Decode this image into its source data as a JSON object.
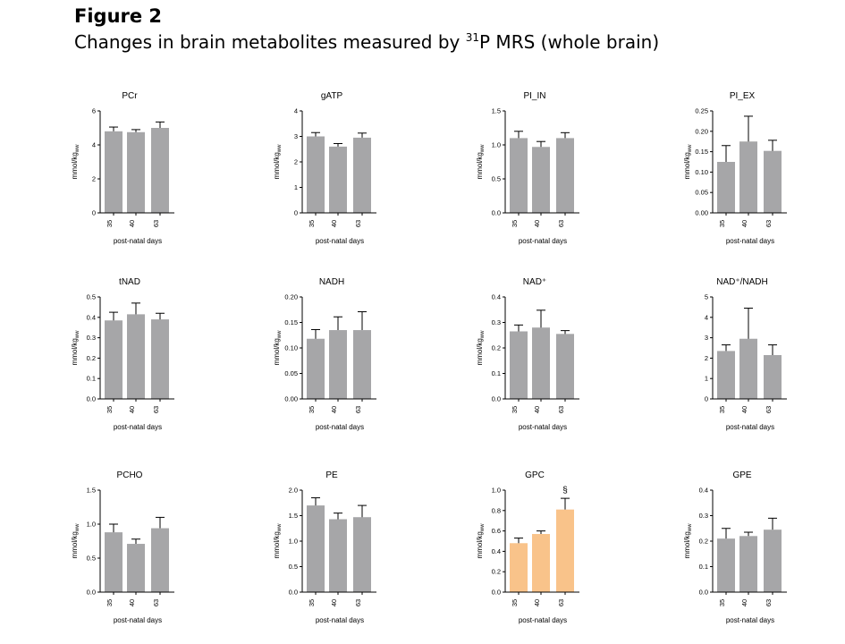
{
  "figure": {
    "label": "Figure 2",
    "caption_pre": "Changes in brain metabolites measured by ",
    "caption_sup": "31",
    "caption_post": "P MRS (whole brain)"
  },
  "colors": {
    "default_bar": "#a6a6a8",
    "highlight_bar": "#f9c38a",
    "axis": "#000000"
  },
  "chart_data": [
    {
      "type": "bar",
      "title": "PCr",
      "ylabel": "mmol/kg_ww",
      "xlabel": "post-natal days",
      "categories": [
        "35",
        "40",
        "63"
      ],
      "values": [
        4.8,
        4.75,
        5.0
      ],
      "errors": [
        0.25,
        0.15,
        0.35
      ],
      "ylim": [
        0,
        6
      ],
      "yticks": [
        "0",
        "2",
        "4",
        "6"
      ],
      "highlight": false
    },
    {
      "type": "bar",
      "title": "gATP",
      "ylabel": "mmol/kg_ww",
      "xlabel": "post-natal days",
      "categories": [
        "35",
        "40",
        "63"
      ],
      "values": [
        3.0,
        2.6,
        2.95
      ],
      "errors": [
        0.15,
        0.12,
        0.18
      ],
      "ylim": [
        0,
        4
      ],
      "yticks": [
        "0",
        "1",
        "2",
        "3",
        "4"
      ],
      "highlight": false
    },
    {
      "type": "bar",
      "title": "PI_IN",
      "ylabel": "mmol/kg_ww",
      "xlabel": "post-natal days",
      "categories": [
        "35",
        "40",
        "63"
      ],
      "values": [
        1.1,
        0.97,
        1.1
      ],
      "errors": [
        0.1,
        0.08,
        0.08
      ],
      "ylim": [
        0,
        1.5
      ],
      "yticks": [
        "0.0",
        "0.5",
        "1.0",
        "1.5"
      ],
      "highlight": false
    },
    {
      "type": "bar",
      "title": "PI_EX",
      "ylabel": "mmol/kg_ww",
      "xlabel": "post-natal days",
      "categories": [
        "35",
        "40",
        "63"
      ],
      "values": [
        0.125,
        0.175,
        0.152
      ],
      "errors": [
        0.04,
        0.062,
        0.026
      ],
      "ylim": [
        0,
        0.25
      ],
      "yticks": [
        "0.00",
        "0.05",
        "0.10",
        "0.15",
        "0.20",
        "0.25"
      ],
      "highlight": false
    },
    {
      "type": "bar",
      "title": "tNAD",
      "ylabel": "mmol/kg_ww",
      "xlabel": "post-natal days",
      "categories": [
        "35",
        "40",
        "63"
      ],
      "values": [
        0.385,
        0.415,
        0.39
      ],
      "errors": [
        0.04,
        0.055,
        0.03
      ],
      "ylim": [
        0,
        0.5
      ],
      "yticks": [
        "0.0",
        "0.1",
        "0.2",
        "0.3",
        "0.4",
        "0.5"
      ],
      "highlight": false
    },
    {
      "type": "bar",
      "title": "NADH",
      "ylabel": "mmol/kg_ww",
      "xlabel": "post-natal days",
      "categories": [
        "35",
        "40",
        "63"
      ],
      "values": [
        0.118,
        0.135,
        0.135
      ],
      "errors": [
        0.018,
        0.026,
        0.036
      ],
      "ylim": [
        0,
        0.2
      ],
      "yticks": [
        "0.00",
        "0.05",
        "0.10",
        "0.15",
        "0.20"
      ],
      "highlight": false
    },
    {
      "type": "bar",
      "title": "NAD⁺",
      "ylabel": "mmol/kg_ww",
      "xlabel": "post-natal days",
      "categories": [
        "35",
        "40",
        "63"
      ],
      "values": [
        0.265,
        0.28,
        0.255
      ],
      "errors": [
        0.025,
        0.068,
        0.013
      ],
      "ylim": [
        0,
        0.4
      ],
      "yticks": [
        "0.0",
        "0.1",
        "0.2",
        "0.3",
        "0.4"
      ],
      "highlight": false
    },
    {
      "type": "bar",
      "title": "NAD⁺/NADH",
      "ylabel": "",
      "xlabel": "post-natal days",
      "categories": [
        "35",
        "40",
        "63"
      ],
      "values": [
        2.35,
        2.95,
        2.15
      ],
      "errors": [
        0.3,
        1.5,
        0.5
      ],
      "ylim": [
        0,
        5
      ],
      "yticks": [
        "0",
        "1",
        "2",
        "3",
        "4",
        "5"
      ],
      "highlight": false
    },
    {
      "type": "bar",
      "title": "PCHO",
      "ylabel": "mmol/kg_ww",
      "xlabel": "post-natal days",
      "categories": [
        "35",
        "40",
        "63"
      ],
      "values": [
        0.88,
        0.71,
        0.94
      ],
      "errors": [
        0.12,
        0.07,
        0.16
      ],
      "ylim": [
        0,
        1.5
      ],
      "yticks": [
        "0.0",
        "0.5",
        "1.0",
        "1.5"
      ],
      "highlight": false
    },
    {
      "type": "bar",
      "title": "PE",
      "ylabel": "mmol/kg_ww",
      "xlabel": "post-natal days",
      "categories": [
        "35",
        "40",
        "63"
      ],
      "values": [
        1.7,
        1.43,
        1.47
      ],
      "errors": [
        0.15,
        0.12,
        0.23
      ],
      "ylim": [
        0,
        2
      ],
      "yticks": [
        "0.0",
        "0.5",
        "1.0",
        "1.5",
        "2.0"
      ],
      "highlight": false
    },
    {
      "type": "bar",
      "title": "GPC",
      "ylabel": "mmol/kg_ww",
      "xlabel": "post-natal days",
      "categories": [
        "35",
        "40",
        "63"
      ],
      "values": [
        0.48,
        0.57,
        0.81
      ],
      "errors": [
        0.05,
        0.03,
        0.11
      ],
      "ylim": [
        0,
        1.0
      ],
      "yticks": [
        "0.0",
        "0.2",
        "0.4",
        "0.6",
        "0.8",
        "1.0"
      ],
      "highlight": true,
      "annotation": {
        "text": "§",
        "category": "63"
      }
    },
    {
      "type": "bar",
      "title": "GPE",
      "ylabel": "mmol/kg_ww",
      "xlabel": "post-natal days",
      "categories": [
        "35",
        "40",
        "63"
      ],
      "values": [
        0.21,
        0.22,
        0.245
      ],
      "errors": [
        0.04,
        0.015,
        0.045
      ],
      "ylim": [
        0,
        0.4
      ],
      "yticks": [
        "0.0",
        "0.1",
        "0.2",
        "0.3",
        "0.4"
      ],
      "highlight": false
    }
  ]
}
